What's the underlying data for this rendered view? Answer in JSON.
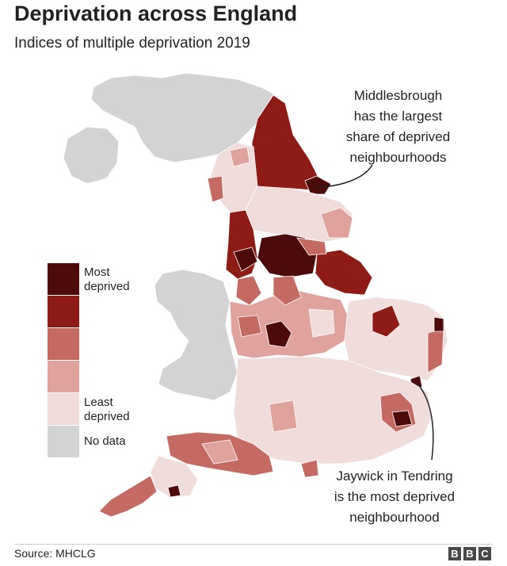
{
  "header": {
    "title": "Deprivation across England",
    "subtitle": "Indices of multiple deprivation 2019"
  },
  "legend": {
    "items": [
      {
        "label": "Most\ndeprived",
        "color": "#4d0a0a"
      },
      {
        "label": "",
        "color": "#8f1b16"
      },
      {
        "label": "",
        "color": "#c46a63"
      },
      {
        "label": "",
        "color": "#dfa29d"
      },
      {
        "label": "Least\ndeprived",
        "color": "#f0dcdb"
      },
      {
        "label": "No data",
        "color": "#d3d3d3"
      }
    ]
  },
  "annotations": {
    "middlesbrough": "Middlesbrough\nhas the largest\nshare of deprived\nneighbourhoods",
    "jaywick": "Jaywick in Tendring\nis the most deprived\nneighbourhood"
  },
  "footer": {
    "source": "Source: MHCLG",
    "logo_letters": [
      "B",
      "B",
      "C"
    ]
  },
  "colors": {
    "most": "#4d0a0a",
    "high": "#8f1b16",
    "mid": "#c46a63",
    "low": "#dfa29d",
    "least": "#f0dcdb",
    "nodata": "#d3d3d3"
  }
}
